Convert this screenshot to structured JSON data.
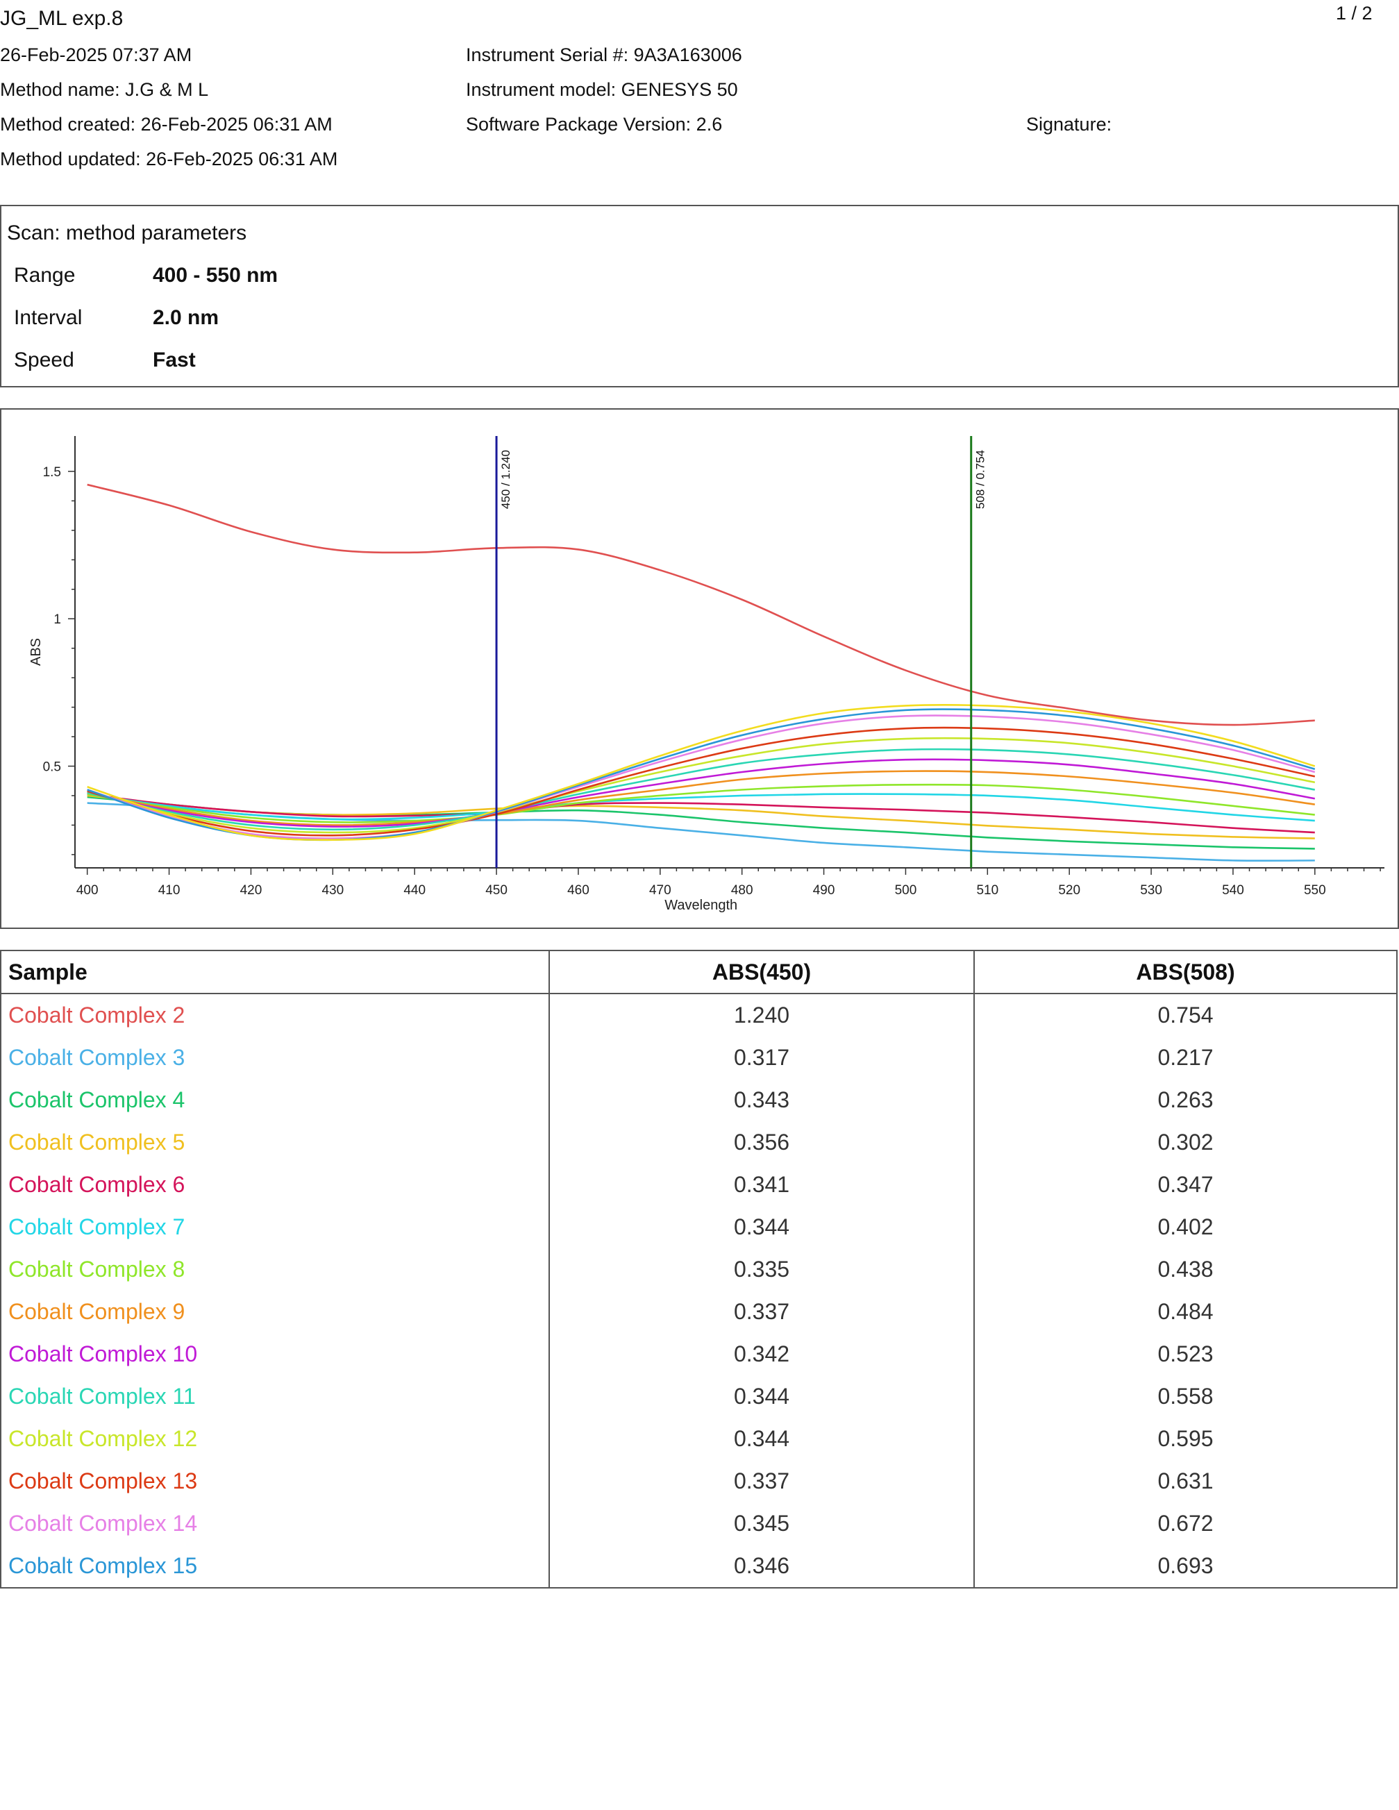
{
  "header": {
    "title": "JG_ML exp.8",
    "page": "1 / 2",
    "datetime": "26-Feb-2025 07:37 AM",
    "method_name": "Method name: J.G & M L",
    "method_created": "Method created: 26-Feb-2025 06:31 AM",
    "method_updated": "Method updated: 26-Feb-2025 06:31 AM",
    "serial": "Instrument Serial #: 9A3A163006",
    "model": "Instrument model: GENESYS 50",
    "software": "Software Package Version: 2.6",
    "signature": "Signature:"
  },
  "params": {
    "title": "Scan: method parameters",
    "rows": [
      {
        "label": "Range",
        "value": "400 - 550 nm"
      },
      {
        "label": "Interval",
        "value": "2.0 nm"
      },
      {
        "label": "Speed",
        "value": "Fast"
      }
    ]
  },
  "chart_data": {
    "type": "line",
    "xlabel": "Wavelength",
    "ylabel": "ABS",
    "xlim": [
      398.5,
      558.5
    ],
    "ylim": [
      0.155,
      1.62
    ],
    "xticks": [
      400,
      410,
      420,
      430,
      440,
      450,
      460,
      470,
      480,
      490,
      500,
      510,
      520,
      530,
      540,
      550
    ],
    "yticks": [
      0.5,
      1,
      1.5
    ],
    "ytick_labels": [
      "0.5",
      "1",
      "1.5"
    ],
    "markers": [
      {
        "x": 450,
        "label": "450 / 1.240",
        "color": "#1a1a9a"
      },
      {
        "x": 508,
        "label": "508 / 0.754",
        "color": "#1b7a1b"
      }
    ],
    "x": [
      400,
      410,
      420,
      430,
      440,
      450,
      460,
      470,
      480,
      490,
      500,
      510,
      520,
      530,
      540,
      550
    ],
    "series": [
      {
        "name": "Cobalt Complex 2",
        "color": "#e05050",
        "values": [
          1.455,
          1.385,
          1.295,
          1.235,
          1.225,
          1.24,
          1.235,
          1.165,
          1.065,
          0.94,
          0.825,
          0.74,
          0.695,
          0.655,
          0.64,
          0.655
        ]
      },
      {
        "name": "Cobalt Complex 3",
        "color": "#4ab0e6",
        "values": [
          0.375,
          0.36,
          0.335,
          0.32,
          0.315,
          0.317,
          0.315,
          0.29,
          0.265,
          0.24,
          0.225,
          0.21,
          0.2,
          0.19,
          0.18,
          0.18
        ]
      },
      {
        "name": "Cobalt Complex 4",
        "color": "#1bc46a",
        "values": [
          0.395,
          0.37,
          0.345,
          0.335,
          0.335,
          0.343,
          0.35,
          0.335,
          0.31,
          0.29,
          0.275,
          0.258,
          0.245,
          0.235,
          0.225,
          0.22
        ]
      },
      {
        "name": "Cobalt Complex 5",
        "color": "#f0c020",
        "values": [
          0.4,
          0.37,
          0.345,
          0.335,
          0.34,
          0.356,
          0.365,
          0.36,
          0.35,
          0.33,
          0.315,
          0.298,
          0.285,
          0.27,
          0.26,
          0.255
        ]
      },
      {
        "name": "Cobalt Complex 6",
        "color": "#d4145a",
        "values": [
          0.405,
          0.37,
          0.345,
          0.33,
          0.332,
          0.341,
          0.37,
          0.375,
          0.37,
          0.36,
          0.352,
          0.342,
          0.327,
          0.31,
          0.29,
          0.275
        ]
      },
      {
        "name": "Cobalt Complex 7",
        "color": "#22d6e6",
        "values": [
          0.405,
          0.365,
          0.335,
          0.32,
          0.325,
          0.344,
          0.375,
          0.39,
          0.4,
          0.405,
          0.405,
          0.4,
          0.385,
          0.36,
          0.335,
          0.315
        ]
      },
      {
        "name": "Cobalt Complex 8",
        "color": "#8fe62a",
        "values": [
          0.405,
          0.36,
          0.325,
          0.31,
          0.315,
          0.335,
          0.375,
          0.4,
          0.42,
          0.432,
          0.437,
          0.435,
          0.42,
          0.395,
          0.365,
          0.335
        ]
      },
      {
        "name": "Cobalt Complex 9",
        "color": "#f0901e",
        "values": [
          0.41,
          0.355,
          0.315,
          0.3,
          0.31,
          0.337,
          0.385,
          0.42,
          0.455,
          0.475,
          0.483,
          0.48,
          0.465,
          0.44,
          0.41,
          0.37
        ]
      },
      {
        "name": "Cobalt Complex 10",
        "color": "#c01ad6",
        "values": [
          0.41,
          0.35,
          0.31,
          0.295,
          0.305,
          0.342,
          0.395,
          0.44,
          0.48,
          0.508,
          0.522,
          0.52,
          0.505,
          0.475,
          0.44,
          0.39
        ]
      },
      {
        "name": "Cobalt Complex 11",
        "color": "#2ad6b4",
        "values": [
          0.41,
          0.345,
          0.3,
          0.285,
          0.3,
          0.344,
          0.405,
          0.46,
          0.51,
          0.54,
          0.556,
          0.555,
          0.54,
          0.51,
          0.47,
          0.42
        ]
      },
      {
        "name": "Cobalt Complex 12",
        "color": "#c8e62a",
        "values": [
          0.415,
          0.34,
          0.29,
          0.275,
          0.29,
          0.344,
          0.415,
          0.48,
          0.535,
          0.575,
          0.593,
          0.593,
          0.578,
          0.545,
          0.5,
          0.445
        ]
      },
      {
        "name": "Cobalt Complex 13",
        "color": "#dc3a14",
        "values": [
          0.415,
          0.335,
          0.28,
          0.265,
          0.285,
          0.337,
          0.42,
          0.495,
          0.56,
          0.605,
          0.628,
          0.628,
          0.61,
          0.575,
          0.525,
          0.465
        ]
      },
      {
        "name": "Cobalt Complex 14",
        "color": "#e680e6",
        "values": [
          0.42,
          0.33,
          0.27,
          0.255,
          0.275,
          0.345,
          0.43,
          0.515,
          0.59,
          0.645,
          0.67,
          0.668,
          0.648,
          0.608,
          0.555,
          0.48
        ]
      },
      {
        "name": "Cobalt Complex 15",
        "color": "#2a96d6",
        "values": [
          0.42,
          0.325,
          0.265,
          0.25,
          0.275,
          0.346,
          0.435,
          0.525,
          0.605,
          0.66,
          0.69,
          0.69,
          0.67,
          0.628,
          0.57,
          0.49
        ]
      },
      {
        "name": "",
        "color": "#f2dc1e",
        "values": [
          0.43,
          0.335,
          0.265,
          0.25,
          0.27,
          0.35,
          0.44,
          0.535,
          0.62,
          0.68,
          0.705,
          0.705,
          0.685,
          0.645,
          0.585,
          0.5
        ]
      }
    ]
  },
  "table": {
    "headers": [
      "Sample",
      "ABS(450)",
      "ABS(508)"
    ],
    "rows": [
      {
        "sample": "Cobalt Complex 2",
        "a450": "1.240",
        "a508": "0.754",
        "color": "#e05050"
      },
      {
        "sample": "Cobalt Complex 3",
        "a450": "0.317",
        "a508": "0.217",
        "color": "#4ab0e6"
      },
      {
        "sample": "Cobalt Complex 4",
        "a450": "0.343",
        "a508": "0.263",
        "color": "#1bc46a"
      },
      {
        "sample": "Cobalt Complex 5",
        "a450": "0.356",
        "a508": "0.302",
        "color": "#f0c020"
      },
      {
        "sample": "Cobalt Complex 6",
        "a450": "0.341",
        "a508": "0.347",
        "color": "#d4145a"
      },
      {
        "sample": "Cobalt Complex 7",
        "a450": "0.344",
        "a508": "0.402",
        "color": "#22d6e6"
      },
      {
        "sample": "Cobalt Complex 8",
        "a450": "0.335",
        "a508": "0.438",
        "color": "#8fe62a"
      },
      {
        "sample": "Cobalt Complex 9",
        "a450": "0.337",
        "a508": "0.484",
        "color": "#f0901e"
      },
      {
        "sample": "Cobalt Complex 10",
        "a450": "0.342",
        "a508": "0.523",
        "color": "#c01ad6"
      },
      {
        "sample": "Cobalt Complex 11",
        "a450": "0.344",
        "a508": "0.558",
        "color": "#2ad6b4"
      },
      {
        "sample": "Cobalt Complex 12",
        "a450": "0.344",
        "a508": "0.595",
        "color": "#c8e62a"
      },
      {
        "sample": "Cobalt Complex 13",
        "a450": "0.337",
        "a508": "0.631",
        "color": "#dc3a14"
      },
      {
        "sample": "Cobalt Complex 14",
        "a450": "0.345",
        "a508": "0.672",
        "color": "#e680e6"
      },
      {
        "sample": "Cobalt Complex 15",
        "a450": "0.346",
        "a508": "0.693",
        "color": "#2a96d6"
      }
    ]
  }
}
